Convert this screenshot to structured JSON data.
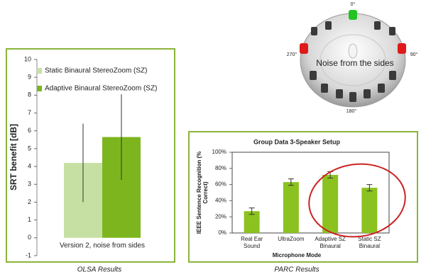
{
  "chart_data": [
    {
      "type": "bar",
      "y_label": "SRT benefit [dB]",
      "categories": [
        "Version 2, noise from sides"
      ],
      "series": [
        {
          "name": "Static Binaural StereoZoom (SZ)",
          "color": "#c6e0a4",
          "values": [
            4.2
          ],
          "errors": [
            2.2
          ]
        },
        {
          "name": "Adaptive Binaural StereoZoom (SZ)",
          "color": "#7db51f",
          "values": [
            5.65
          ],
          "errors": [
            2.4
          ]
        }
      ],
      "ylim": [
        -1,
        10
      ],
      "yticks": [
        -1,
        0,
        1,
        2,
        3,
        4,
        5,
        6,
        7,
        8,
        9,
        10
      ],
      "grid": false,
      "legend": "top-left",
      "caption": "OLSA Results"
    },
    {
      "type": "bar",
      "title": "Group Data 3-Speaker Setup",
      "y_label": "IEEE Sentence Recognition (% Correct)",
      "x_label": "Microphone Mode",
      "categories": [
        "Real Ear Sound",
        "UltraZoom",
        "Adaptive SZ Binaural",
        "Static SZ Binaural"
      ],
      "values": [
        27,
        63,
        72,
        56
      ],
      "errors": [
        4,
        4,
        4,
        4
      ],
      "color": "#8cc21f",
      "ylim": [
        0,
        100
      ],
      "yticks": [
        {
          "value": 0,
          "label": "0%"
        },
        {
          "value": 20,
          "label": "20%"
        },
        {
          "value": 40,
          "label": "40%"
        },
        {
          "value": 60,
          "label": "60%"
        },
        {
          "value": 80,
          "label": "80%"
        },
        {
          "value": 100,
          "label": "100%"
        }
      ],
      "grid": false,
      "caption": "PARC Results"
    }
  ],
  "diagram": {
    "angles": [
      "0°",
      "90°",
      "180°",
      "270°"
    ],
    "label": "Noise from the sides"
  }
}
